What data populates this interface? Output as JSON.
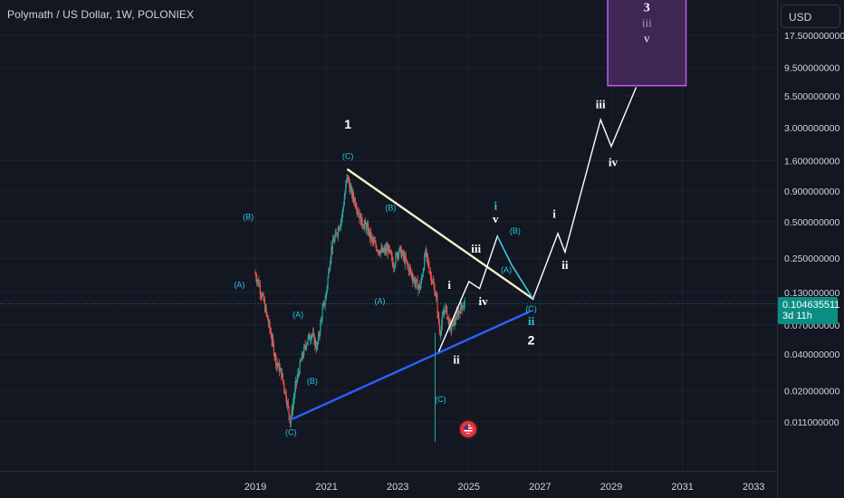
{
  "title": "Polymath / US Dollar, 1W, POLONIEX",
  "currency": "USD",
  "last_price": {
    "value": "0.104635511",
    "countdown": "3d 11h",
    "color": "#0c8d83"
  },
  "colors": {
    "background": "#131722",
    "grid": "#1e222d",
    "candle_up": "#26a69a",
    "candle_down": "#ef5350",
    "resistance_line": "#f5f0c8",
    "support_line": "#2962ff",
    "projection": "#ffffff",
    "projection_alt": "#26c6da",
    "target_box": "#8e44ad"
  },
  "chart_data": {
    "type": "candlestick",
    "scale": "log",
    "x_ticks": [
      "2019",
      "2021",
      "2023",
      "2025",
      "2027",
      "2029",
      "2031",
      "2033"
    ],
    "y_ticks": [
      "17.500000000",
      "9.500000000",
      "5.500000000",
      "3.000000000",
      "1.600000000",
      "0.900000000",
      "0.500000000",
      "0.250000000",
      "0.130000000",
      "0.070000000",
      "0.040000000",
      "0.020000000",
      "0.011000000"
    ],
    "ylim": [
      0.008,
      25
    ],
    "price_path": [
      [
        2019.0,
        0.19
      ],
      [
        2019.1,
        0.16
      ],
      [
        2019.25,
        0.11
      ],
      [
        2019.45,
        0.06
      ],
      [
        2019.6,
        0.035
      ],
      [
        2019.75,
        0.028
      ],
      [
        2019.9,
        0.017
      ],
      [
        2020.0,
        0.011
      ],
      [
        2020.15,
        0.022
      ],
      [
        2020.3,
        0.035
      ],
      [
        2020.45,
        0.05
      ],
      [
        2020.6,
        0.06
      ],
      [
        2020.75,
        0.045
      ],
      [
        2020.9,
        0.09
      ],
      [
        2021.0,
        0.12
      ],
      [
        2021.15,
        0.3
      ],
      [
        2021.3,
        0.4
      ],
      [
        2021.45,
        0.55
      ],
      [
        2021.6,
        1.2
      ],
      [
        2021.7,
        0.9
      ],
      [
        2021.85,
        0.7
      ],
      [
        2022.0,
        0.5
      ],
      [
        2022.15,
        0.45
      ],
      [
        2022.3,
        0.35
      ],
      [
        2022.45,
        0.3
      ],
      [
        2022.6,
        0.28
      ],
      [
        2022.75,
        0.3
      ],
      [
        2022.9,
        0.22
      ],
      [
        2023.05,
        0.3
      ],
      [
        2023.2,
        0.25
      ],
      [
        2023.35,
        0.2
      ],
      [
        2023.5,
        0.16
      ],
      [
        2023.65,
        0.14
      ],
      [
        2023.8,
        0.28
      ],
      [
        2023.95,
        0.18
      ],
      [
        2024.1,
        0.12
      ],
      [
        2024.2,
        0.06
      ],
      [
        2024.35,
        0.1
      ],
      [
        2024.5,
        0.065
      ],
      [
        2024.65,
        0.08
      ],
      [
        2024.8,
        0.1
      ],
      [
        2024.9,
        0.105
      ]
    ],
    "lines": [
      {
        "name": "resistance",
        "from": [
          2021.6,
          1.35
        ],
        "to": [
          2026.8,
          0.115
        ]
      },
      {
        "name": "support",
        "from": [
          2020.0,
          0.0115
        ],
        "to": [
          2026.7,
          0.09
        ]
      }
    ],
    "projection_main": [
      [
        2024.15,
        0.042
      ],
      [
        2025.0,
        0.16
      ],
      [
        2025.3,
        0.14
      ],
      [
        2025.8,
        0.38
      ],
      [
        2026.2,
        0.22
      ],
      [
        2026.8,
        0.115
      ],
      [
        2027.5,
        0.4
      ],
      [
        2027.7,
        0.28
      ],
      [
        2028.7,
        3.5
      ],
      [
        2029.0,
        2.1
      ],
      [
        2029.7,
        6.5
      ]
    ],
    "projection_alt": [
      [
        2025.8,
        0.38
      ],
      [
        2026.2,
        0.22
      ],
      [
        2026.8,
        0.115
      ]
    ],
    "wave_labels": [
      {
        "text": "1",
        "x": 2021.6,
        "y": 3.2,
        "color": "#ffffff",
        "size": 14
      },
      {
        "text": "(C)",
        "x": 2021.6,
        "y": 1.75,
        "color": "#26c6da",
        "size": 9
      },
      {
        "text": "(B)",
        "x": 2018.8,
        "y": 0.55,
        "color": "#26c6da",
        "size": 9
      },
      {
        "text": "(A)",
        "x": 2018.55,
        "y": 0.15,
        "color": "#26c6da",
        "size": 9
      },
      {
        "text": "(A)",
        "x": 2020.2,
        "y": 0.085,
        "color": "#26c6da",
        "size": 9
      },
      {
        "text": "(B)",
        "x": 2020.6,
        "y": 0.024,
        "color": "#26c6da",
        "size": 9
      },
      {
        "text": "(C)",
        "x": 2020.0,
        "y": 0.009,
        "color": "#26c6da",
        "size": 9
      },
      {
        "text": "(B)",
        "x": 2022.8,
        "y": 0.65,
        "color": "#26c6da",
        "size": 9
      },
      {
        "text": "(A)",
        "x": 2022.5,
        "y": 0.11,
        "color": "#26c6da",
        "size": 9
      },
      {
        "text": "(C)",
        "x": 2024.2,
        "y": 0.017,
        "color": "#26c6da",
        "size": 9
      },
      {
        "text": "i",
        "x": 2024.45,
        "y": 0.15,
        "color": "#ffffff",
        "size": 13
      },
      {
        "text": "ii",
        "x": 2024.65,
        "y": 0.036,
        "color": "#ffffff",
        "size": 13
      },
      {
        "text": "iii",
        "x": 2025.2,
        "y": 0.3,
        "color": "#ffffff",
        "size": 13
      },
      {
        "text": "iv",
        "x": 2025.4,
        "y": 0.11,
        "color": "#ffffff",
        "size": 13
      },
      {
        "text": "i",
        "x": 2025.75,
        "y": 0.68,
        "color": "#26c6da",
        "size": 13
      },
      {
        "text": "v",
        "x": 2025.75,
        "y": 0.53,
        "color": "#ffffff",
        "size": 13
      },
      {
        "text": "(B)",
        "x": 2026.3,
        "y": 0.42,
        "color": "#26c6da",
        "size": 9
      },
      {
        "text": "(A)",
        "x": 2026.05,
        "y": 0.2,
        "color": "#26c6da",
        "size": 9
      },
      {
        "text": "(C)",
        "x": 2026.75,
        "y": 0.095,
        "color": "#26c6da",
        "size": 9
      },
      {
        "text": "ii",
        "x": 2026.75,
        "y": 0.075,
        "color": "#26c6da",
        "size": 13
      },
      {
        "text": "2",
        "x": 2026.75,
        "y": 0.052,
        "color": "#ffffff",
        "size": 14
      },
      {
        "text": "i",
        "x": 2027.4,
        "y": 0.58,
        "color": "#ffffff",
        "size": 13
      },
      {
        "text": "ii",
        "x": 2027.7,
        "y": 0.22,
        "color": "#ffffff",
        "size": 13
      },
      {
        "text": "iii",
        "x": 2028.7,
        "y": 4.7,
        "color": "#ffffff",
        "size": 13
      },
      {
        "text": "iv",
        "x": 2029.05,
        "y": 1.55,
        "color": "#ffffff",
        "size": 13
      }
    ],
    "target_box": {
      "x0": 2028.9,
      "x1": 2031.1,
      "y0": 6.7,
      "y1": 42,
      "labels": [
        "3",
        "iii",
        "v"
      ]
    }
  }
}
